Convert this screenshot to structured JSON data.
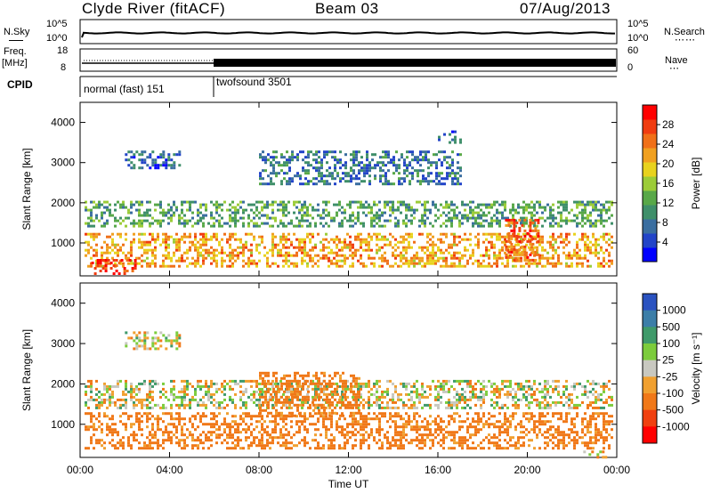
{
  "header": {
    "station": "Clyde River (fitACF)",
    "beam": "Beam 03",
    "date": "07/Aug/2013"
  },
  "noise_panel": {
    "left_label": "N.Sky",
    "right_label": "N.Search",
    "left_ticks": [
      "10^5",
      "10^0"
    ],
    "right_ticks": [
      "10^5",
      "10^0"
    ]
  },
  "freq_panel": {
    "left_label_top": "Freq.",
    "left_label_unit": "[MHz]",
    "right_label": "Nave",
    "left_ticks": [
      "18",
      "8"
    ],
    "right_ticks": [
      "60",
      "0"
    ]
  },
  "cpid_panel": {
    "label": "CPID",
    "modes": [
      "normal (fast) 151",
      "twofsound 3501"
    ]
  },
  "chart_data": [
    {
      "type": "heatmap",
      "name": "Power",
      "xlabel": "",
      "ylabel": "Slant Range [km]",
      "x_ticks": [
        "00:00",
        "04:00",
        "08:00",
        "12:00",
        "16:00",
        "20:00",
        "00:00"
      ],
      "y_ticks": [
        1000,
        2000,
        3000,
        4000
      ],
      "ylim": [
        180,
        4500
      ],
      "colorbar": {
        "label": "Power [dB]",
        "ticks": [
          4,
          8,
          12,
          16,
          20,
          24,
          28
        ],
        "colors": [
          "#0000ff",
          "#2244c8",
          "#3a6ea0",
          "#3f8f6a",
          "#58a848",
          "#9ccc38",
          "#e8d21e",
          "#f0a020",
          "#f07018",
          "#f03c10",
          "#ff0000"
        ]
      },
      "bands": [
        {
          "start_h": 0.2,
          "end_h": 23.8,
          "min_km": 400,
          "max_km": 1250,
          "value": 22
        },
        {
          "start_h": 0.2,
          "end_h": 23.8,
          "min_km": 1400,
          "max_km": 2050,
          "value": 12
        },
        {
          "start_h": 0.5,
          "end_h": 2.5,
          "min_km": 250,
          "max_km": 600,
          "value": 29
        },
        {
          "start_h": 19.0,
          "end_h": 20.5,
          "min_km": 600,
          "max_km": 1600,
          "value": 26
        },
        {
          "start_h": 2.0,
          "end_h": 4.5,
          "min_km": 2900,
          "max_km": 3300,
          "value": 6
        },
        {
          "start_h": 8.0,
          "end_h": 17.0,
          "min_km": 2500,
          "max_km": 3300,
          "value": 8
        },
        {
          "start_h": 16.0,
          "end_h": 17.0,
          "min_km": 3500,
          "max_km": 3800,
          "value": 7
        }
      ]
    },
    {
      "type": "heatmap",
      "name": "Velocity",
      "xlabel": "Time UT",
      "ylabel": "Slant Range [km]",
      "x_ticks": [
        "00:00",
        "04:00",
        "08:00",
        "12:00",
        "16:00",
        "20:00",
        "00:00"
      ],
      "y_ticks": [
        1000,
        2000,
        3000,
        4000
      ],
      "ylim": [
        180,
        4500
      ],
      "colorbar": {
        "label": "Velocity [m s⁻¹]",
        "ticks": [
          1000,
          500,
          100,
          25,
          -25,
          -100,
          -500,
          -1000
        ],
        "colors": [
          "#2a52c0",
          "#3c7ea8",
          "#3f9a6a",
          "#7ccc3c",
          "#c8c8c0",
          "#f0a030",
          "#f07818",
          "#f04010",
          "#ff0000"
        ]
      },
      "bands": [
        {
          "start_h": 0.2,
          "end_h": 23.8,
          "min_km": 400,
          "max_km": 1300,
          "value": -200
        },
        {
          "start_h": 0.2,
          "end_h": 23.8,
          "min_km": 1400,
          "max_km": 2100,
          "value": 0
        },
        {
          "start_h": 8.0,
          "end_h": 12.5,
          "min_km": 1200,
          "max_km": 2300,
          "value": -200
        },
        {
          "start_h": 2.0,
          "end_h": 4.5,
          "min_km": 2900,
          "max_km": 3300,
          "value": 0
        },
        {
          "start_h": 22.5,
          "end_h": 23.5,
          "min_km": 200,
          "max_km": 350,
          "value": -60
        }
      ]
    }
  ]
}
